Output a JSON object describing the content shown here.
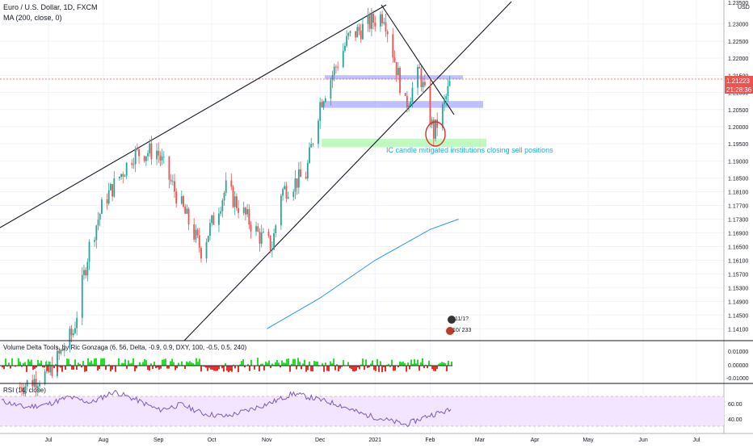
{
  "header": {
    "symbol_title": "Euro / U.S. Dollar, 1D, FXCM",
    "ma_label": "MA (200, close, 0)",
    "currency": "USD",
    "price_badge": "1.21223",
    "countdown_badge": "21:28:36"
  },
  "annotation": {
    "text": "IC candle mitigated institutions closing sell positions"
  },
  "panels": {
    "volume_label": "Volume Delta Tools, by Ric Gonzaga (6, 56, Delta, -0.9, 0.9, DXY, 100, -0.5, 0.5, 240)",
    "volume_axis": [
      "0.01000",
      "0.00000",
      "-0.01000"
    ],
    "rsi_label": "RSI (14, close)",
    "rsi_axis": [
      "60.00",
      "40.00"
    ]
  },
  "markers": [
    "11/1?",
    "10/ 233"
  ],
  "colors": {
    "up": "#26a69a",
    "down": "#ef5350",
    "ma": "#2196f3",
    "zone_blue": "#8c8cff",
    "zone_green": "#9af59a",
    "annotation": "#2aa9d6",
    "price_line": "#ef5350",
    "rsi_line": "#7e57c2",
    "rsi_band": "#f3e5ff",
    "volume_pos": "#22e02b",
    "volume_neg": "#ef2c2c"
  },
  "chart_data": {
    "type": "candlestick",
    "title": "Euro / U.S. Dollar, 1D, FXCM",
    "x_ticks": [
      "Jul",
      "Aug",
      "Sep",
      "Oct",
      "Nov",
      "Dec",
      "2021",
      "Feb",
      "Mar",
      "Apr",
      "May",
      "Jun",
      "Jul"
    ],
    "y_ticks": [
      "1.23000",
      "1.22500",
      "1.22000",
      "1.21500",
      "1.21000",
      "1.20500",
      "1.20000",
      "1.19500",
      "1.19000",
      "1.18500",
      "1.18100",
      "1.17700",
      "1.17300",
      "1.16900",
      "1.16500",
      "1.16100",
      "1.15700",
      "1.15300",
      "1.14900",
      "1.14500",
      "1.14100"
    ],
    "y_top_tick": "1.23500",
    "ylim": [
      1.138,
      1.237
    ],
    "last_price": 1.21223,
    "price_path": [
      {
        "date": "2020-06-15",
        "close": 1.124
      },
      {
        "date": "2020-07-01",
        "close": 1.128
      },
      {
        "date": "2020-07-15",
        "close": 1.14
      },
      {
        "date": "2020-07-24",
        "close": 1.165
      },
      {
        "date": "2020-08-01",
        "close": 1.178
      },
      {
        "date": "2020-08-18",
        "close": 1.192
      },
      {
        "date": "2020-08-31",
        "close": 1.193
      },
      {
        "date": "2020-09-25",
        "close": 1.164
      },
      {
        "date": "2020-10-09",
        "close": 1.182
      },
      {
        "date": "2020-10-28",
        "close": 1.168
      },
      {
        "date": "2020-11-04",
        "close": 1.165
      },
      {
        "date": "2020-11-09",
        "close": 1.181
      },
      {
        "date": "2020-11-23",
        "close": 1.186
      },
      {
        "date": "2020-12-01",
        "close": 1.207
      },
      {
        "date": "2020-12-17",
        "close": 1.226
      },
      {
        "date": "2021-01-06",
        "close": 1.233
      },
      {
        "date": "2021-01-18",
        "close": 1.206
      },
      {
        "date": "2021-01-26",
        "close": 1.216
      },
      {
        "date": "2021-02-03",
        "close": 1.198
      },
      {
        "date": "2021-02-08",
        "close": 1.205
      },
      {
        "date": "2021-02-12",
        "close": 1.2122
      }
    ],
    "ma200_path": [
      {
        "date": "2020-11-01",
        "value": 1.141
      },
      {
        "date": "2020-12-01",
        "value": 1.15
      },
      {
        "date": "2021-01-01",
        "value": 1.161
      },
      {
        "date": "2021-02-01",
        "value": 1.17
      },
      {
        "date": "2021-02-17",
        "value": 1.173
      }
    ],
    "zones": [
      {
        "color": "blue",
        "low": 1.214,
        "high": 1.215
      },
      {
        "color": "blue",
        "low": 1.2055,
        "high": 1.2075
      },
      {
        "color": "green",
        "low": 1.194,
        "high": 1.1965
      }
    ],
    "rsi_ylim": [
      30,
      80
    ],
    "rsi_levels": [
      70,
      30
    ],
    "rsi_path": [
      62,
      55,
      58,
      66,
      60,
      72,
      63,
      52,
      58,
      48,
      45,
      52,
      60,
      70,
      64,
      58,
      48,
      42,
      36,
      46,
      52
    ]
  }
}
